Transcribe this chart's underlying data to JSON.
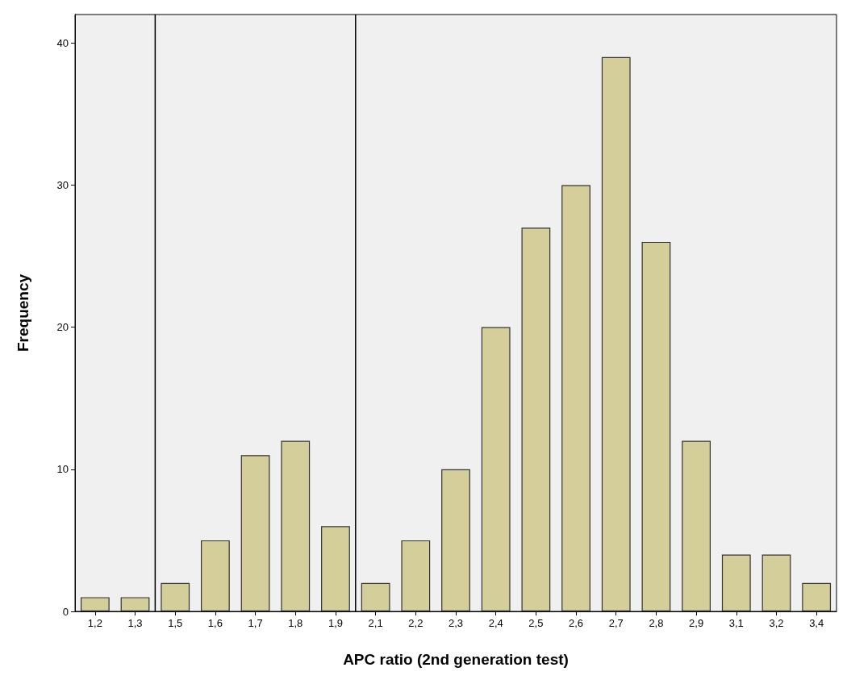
{
  "chart_data": {
    "type": "bar",
    "xlabel": "APC ratio (2nd generation test)",
    "ylabel": "Frequency",
    "categories": [
      "1,2",
      "1,3",
      "1,5",
      "1,6",
      "1,7",
      "1,8",
      "1,9",
      "2,1",
      "2,2",
      "2,3",
      "2,4",
      "2,5",
      "2,6",
      "2,7",
      "2,8",
      "2,9",
      "3,1",
      "3,2",
      "3,4"
    ],
    "values": [
      1,
      1,
      2,
      5,
      11,
      12,
      6,
      2,
      5,
      10,
      20,
      27,
      30,
      39,
      26,
      12,
      4,
      4,
      2
    ],
    "color": "#d3ce9a",
    "ylim": [
      0,
      42
    ],
    "yticks": [
      0,
      10,
      20,
      30,
      40
    ],
    "grid": false
  }
}
